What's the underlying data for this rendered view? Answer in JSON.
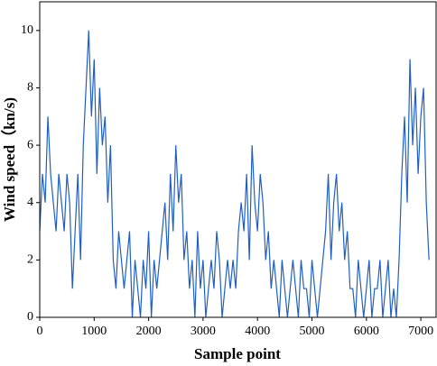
{
  "chart_data": {
    "type": "line",
    "xlabel": "Sample point",
    "ylabel": "Wind speed（kn/s)",
    "x": [
      0,
      50,
      100,
      150,
      200,
      250,
      300,
      350,
      400,
      450,
      500,
      550,
      600,
      650,
      700,
      750,
      800,
      850,
      900,
      950,
      1000,
      1050,
      1100,
      1150,
      1200,
      1250,
      1300,
      1350,
      1400,
      1450,
      1500,
      1550,
      1600,
      1650,
      1700,
      1750,
      1800,
      1850,
      1900,
      1950,
      2000,
      2050,
      2100,
      2150,
      2200,
      2250,
      2300,
      2350,
      2400,
      2450,
      2500,
      2550,
      2600,
      2650,
      2700,
      2750,
      2800,
      2850,
      2900,
      2950,
      3000,
      3050,
      3100,
      3150,
      3200,
      3250,
      3300,
      3350,
      3400,
      3450,
      3500,
      3550,
      3600,
      3650,
      3700,
      3750,
      3800,
      3850,
      3900,
      3950,
      4000,
      4050,
      4100,
      4150,
      4200,
      4250,
      4300,
      4350,
      4400,
      4450,
      4500,
      4550,
      4600,
      4650,
      4700,
      4750,
      4800,
      4850,
      4900,
      4950,
      5000,
      5050,
      5100,
      5150,
      5200,
      5250,
      5300,
      5350,
      5400,
      5450,
      5500,
      5550,
      5600,
      5650,
      5700,
      5750,
      5800,
      5850,
      5900,
      5950,
      6000,
      6050,
      6100,
      6150,
      6200,
      6250,
      6300,
      6350,
      6400,
      6450,
      6500,
      6550,
      6600,
      6650,
      6700,
      6750,
      6800,
      6850,
      6900,
      6950,
      7000,
      7050,
      7100,
      7150
    ],
    "series": [
      {
        "color": "#1f5fc4",
        "values": [
          3,
          5,
          4,
          7,
          5,
          4,
          3,
          5,
          4,
          3,
          5,
          4,
          1,
          3,
          5,
          2,
          6,
          8,
          10,
          7,
          9,
          5,
          8,
          6,
          7,
          4,
          6,
          2,
          1,
          3,
          2,
          1,
          2,
          3,
          0,
          2,
          1,
          0,
          2,
          1,
          3,
          0,
          2,
          1,
          2,
          3,
          4,
          2,
          5,
          3,
          6,
          4,
          5,
          2,
          3,
          1,
          2,
          0,
          3,
          1,
          2,
          0,
          1,
          2,
          1,
          3,
          2,
          0,
          1,
          2,
          1,
          2,
          1,
          3,
          4,
          3,
          5,
          2,
          6,
          4,
          3,
          5,
          4,
          2,
          3,
          1,
          2,
          1,
          0,
          2,
          1,
          0,
          1,
          2,
          1,
          0,
          2,
          1,
          1,
          0,
          2,
          1,
          0,
          1,
          2,
          3,
          5,
          2,
          4,
          5,
          3,
          4,
          2,
          3,
          1,
          1,
          0,
          2,
          1,
          0,
          1,
          2,
          0,
          1,
          1,
          2,
          0,
          1,
          2,
          0,
          1,
          0,
          2,
          5,
          7,
          4,
          9,
          6,
          8,
          5,
          7,
          8,
          4,
          2
        ]
      }
    ],
    "xlim": [
      0,
      7280
    ],
    "xticks": [
      0,
      1000,
      2000,
      3000,
      4000,
      5000,
      6000,
      7000
    ],
    "ylim": [
      0,
      11
    ],
    "yticks": [
      0,
      2,
      4,
      6,
      8,
      10
    ]
  }
}
